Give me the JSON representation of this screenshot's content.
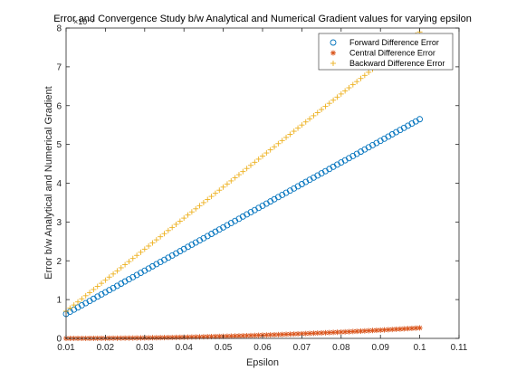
{
  "chart_data": {
    "type": "scatter",
    "title": "Error and Convergence Study b/w Analytical and Numerical Gradient values for varying epsilon",
    "xlabel": "Epsilon",
    "ylabel": "Error b/w Analytical and Numerical Gradient",
    "y_exponent_label": "×10⁻⁷",
    "xlim": [
      0.01,
      0.11
    ],
    "ylim": [
      0,
      8
    ],
    "xticks": [
      0.01,
      0.02,
      0.03,
      0.04,
      0.05,
      0.06,
      0.07,
      0.08,
      0.09,
      0.1,
      0.11
    ],
    "xtick_labels": [
      "0.01",
      "0.02",
      "0.03",
      "0.04",
      "0.05",
      "0.06",
      "0.07",
      "0.08",
      "0.09",
      "0.1",
      "0.11"
    ],
    "yticks": [
      0,
      1,
      2,
      3,
      4,
      5,
      6,
      7,
      8
    ],
    "ytick_labels": [
      "0",
      "1",
      "2",
      "3",
      "4",
      "5",
      "6",
      "7",
      "8"
    ],
    "grid": false,
    "legend_position": "top-right",
    "x": {
      "start": 0.01,
      "end": 0.1,
      "count": 91
    },
    "series": [
      {
        "name": "Forward Difference Error",
        "marker": "circle",
        "color": "#0072BD",
        "y_start": 0.63,
        "y_end": 5.65
      },
      {
        "name": "Central Difference Error",
        "marker": "asterisk",
        "color": "#D95319",
        "y_start": 0.0,
        "y_end": 0.27
      },
      {
        "name": "Backward Difference Error",
        "marker": "plus",
        "color": "#EDB120",
        "y_start": 0.7,
        "y_end": 7.9
      }
    ]
  }
}
